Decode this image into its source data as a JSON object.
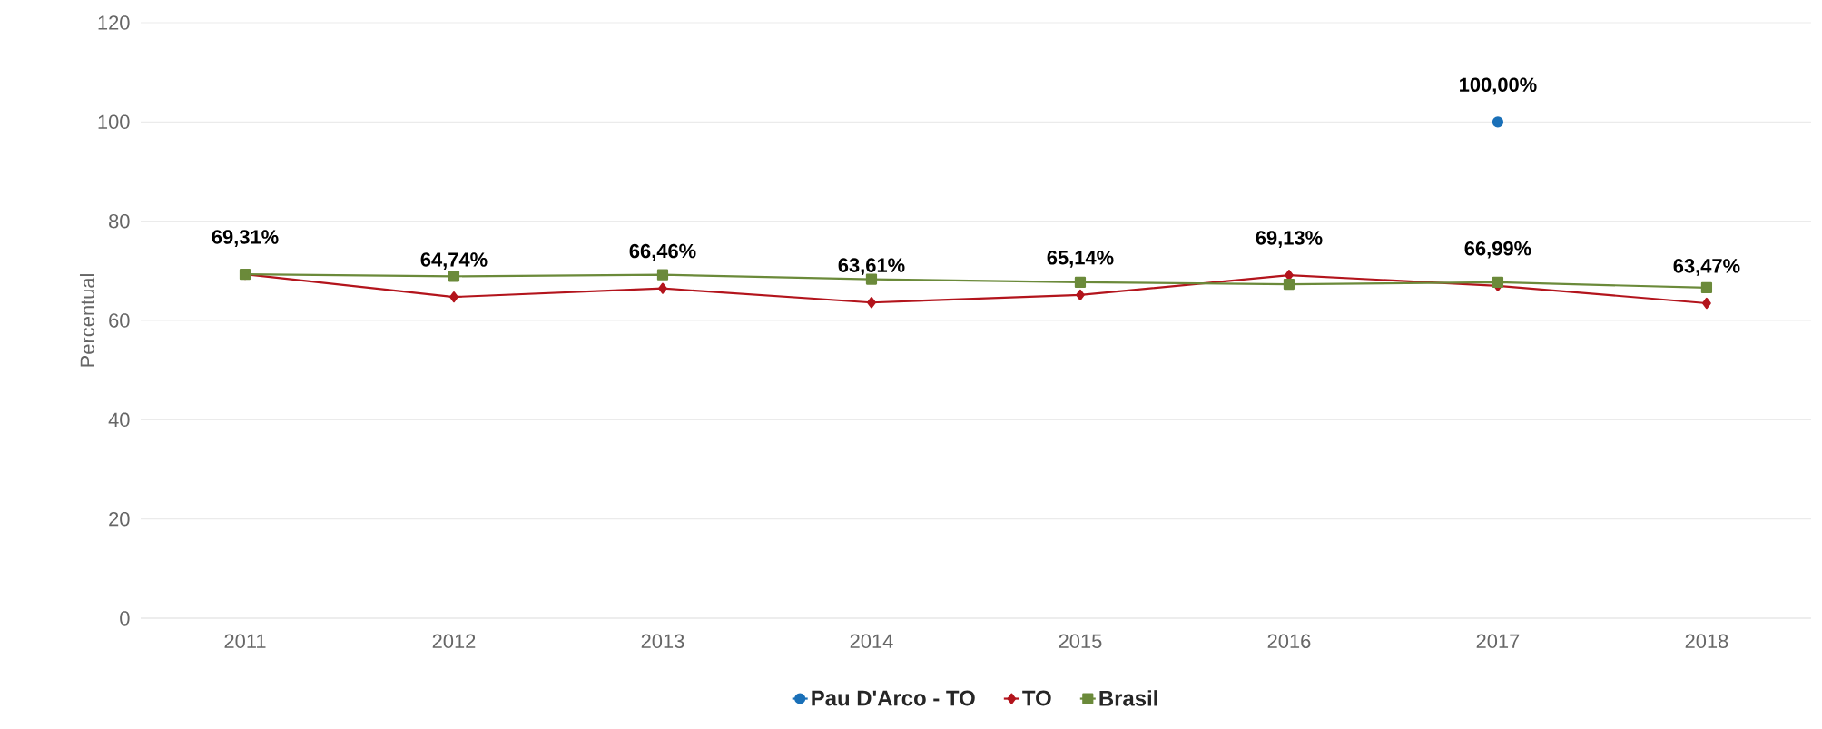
{
  "chart_data": {
    "type": "line",
    "ylabel": "Percentual",
    "categories": [
      "2011",
      "2012",
      "2013",
      "2014",
      "2015",
      "2016",
      "2017",
      "2018"
    ],
    "series": [
      {
        "name": "Pau D'Arco - TO",
        "color": "#1a70b8",
        "marker": "circle",
        "values": [
          null,
          null,
          null,
          null,
          null,
          null,
          100,
          null
        ],
        "value_labels": [
          null,
          null,
          null,
          null,
          null,
          null,
          "100,00%",
          null
        ]
      },
      {
        "name": "TO",
        "color": "#b3141c",
        "marker": "diamond",
        "values": [
          69.31,
          64.74,
          66.46,
          63.61,
          65.14,
          69.13,
          66.99,
          63.47
        ],
        "value_labels": [
          "69,31%",
          "64,74%",
          "66,46%",
          "63,61%",
          "65,14%",
          "69,13%",
          "66,99%",
          "63,47%"
        ]
      },
      {
        "name": "Brasil",
        "color": "#6b8a3a",
        "marker": "square",
        "values": [
          69.3,
          68.9,
          69.2,
          68.3,
          67.7,
          67.3,
          67.7,
          66.6
        ]
      }
    ],
    "ylim": [
      0,
      120
    ],
    "yticks": [
      0,
      20,
      40,
      60,
      80,
      100,
      120
    ],
    "grid": "y",
    "legend": "bottom"
  }
}
